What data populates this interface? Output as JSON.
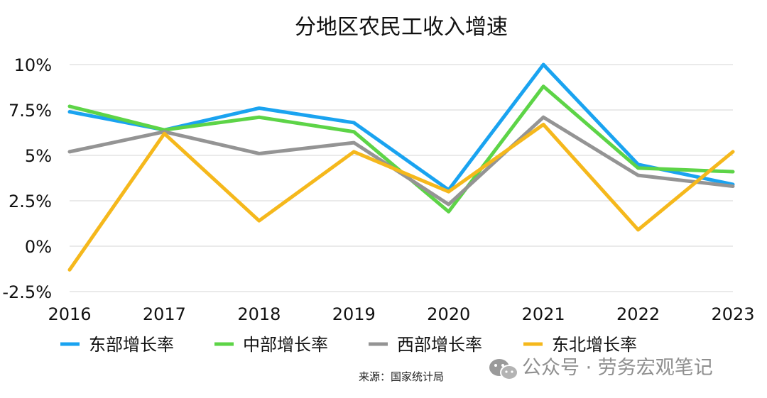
{
  "chart_data": {
    "type": "line",
    "title": "分地区农民工收入增速",
    "x": [
      "2016",
      "2017",
      "2018",
      "2019",
      "2020",
      "2021",
      "2022",
      "2023"
    ],
    "ylim": [
      -2.5,
      10
    ],
    "yticks": [
      10,
      7.5,
      5,
      2.5,
      0,
      -2.5
    ],
    "ytick_labels": [
      "10%",
      "7.5%",
      "5%",
      "2.5%",
      "0%",
      "-2.5%"
    ],
    "grid": "horizontal",
    "legend_position": "bottom",
    "series": [
      {
        "name": "东部增长率",
        "color": "#1aa3f0",
        "values": [
          7.4,
          6.4,
          7.6,
          6.8,
          3.1,
          10.0,
          4.5,
          3.4
        ]
      },
      {
        "name": "中部增长率",
        "color": "#5dd447",
        "values": [
          7.7,
          6.4,
          7.1,
          6.3,
          1.9,
          8.8,
          4.3,
          4.1
        ]
      },
      {
        "name": "西部增长率",
        "color": "#949494",
        "values": [
          5.2,
          6.3,
          5.1,
          5.7,
          2.3,
          7.1,
          3.9,
          3.3
        ]
      },
      {
        "name": "东北增长率",
        "color": "#f5b81c",
        "values": [
          -1.3,
          6.2,
          1.4,
          5.2,
          3.0,
          6.7,
          0.9,
          5.2
        ]
      }
    ]
  },
  "footer": {
    "source": "来源：国家统计局",
    "watermark": "公众号 · 劳务宏观笔记",
    "watermark_icon": "wechat-icon"
  }
}
